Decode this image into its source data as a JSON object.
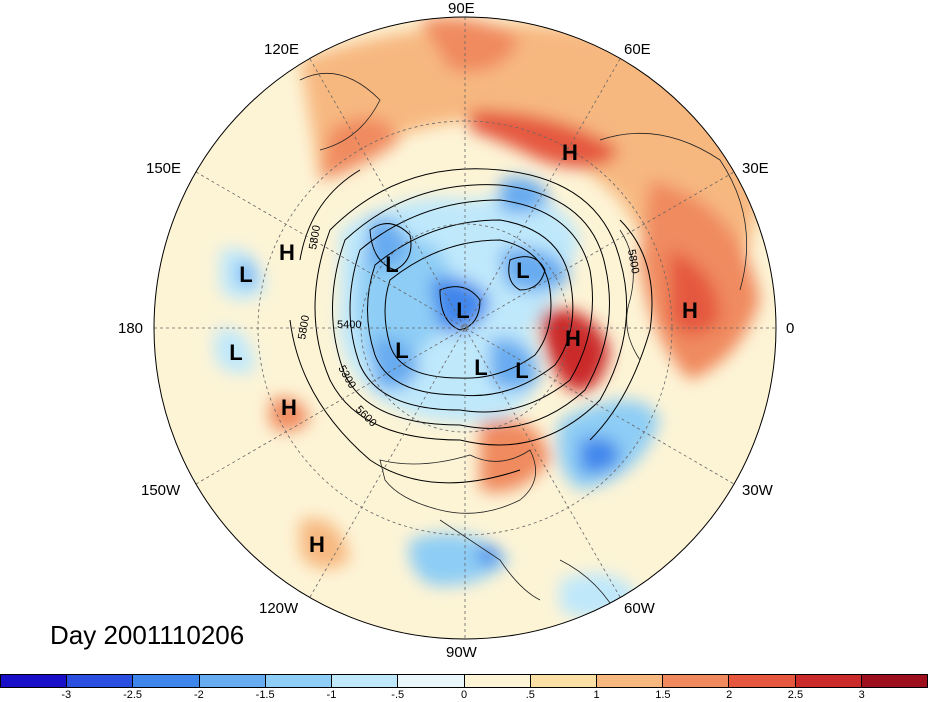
{
  "title": "Day 2001110206",
  "longitude_labels": {
    "n90e": "90E",
    "n120e": "120E",
    "n60e": "60E",
    "n150e": "150E",
    "n30e": "30E",
    "n180": "180",
    "n0": "0",
    "n150w": "150W",
    "n30w": "30W",
    "n120w": "120W",
    "n60w": "60W",
    "n90w": "90W"
  },
  "contour_labels": [
    "5800",
    "5800",
    "5800",
    "5400",
    "5300",
    "5600"
  ],
  "pressure_centers": [
    {
      "type": "H",
      "label": "H"
    },
    {
      "type": "H",
      "label": "H"
    },
    {
      "type": "H",
      "label": "H"
    },
    {
      "type": "H",
      "label": "H"
    },
    {
      "type": "H",
      "label": "H"
    },
    {
      "type": "H",
      "label": "H"
    },
    {
      "type": "L",
      "label": "L"
    },
    {
      "type": "L",
      "label": "L"
    },
    {
      "type": "L",
      "label": "L"
    },
    {
      "type": "L",
      "label": "L"
    },
    {
      "type": "L",
      "label": "L"
    },
    {
      "type": "L",
      "label": "L"
    },
    {
      "type": "L",
      "label": "L"
    },
    {
      "type": "L",
      "label": "L"
    }
  ],
  "colorbar": {
    "colors": [
      "#1a0fc8",
      "#2a4fe0",
      "#3f86ec",
      "#67abf0",
      "#8ecdf5",
      "#bfe8fb",
      "#e9f7fb",
      "#fdf4d6",
      "#fbe0a6",
      "#f7b880",
      "#f08a5e",
      "#e5583f",
      "#cb2a2a",
      "#9e0f1d"
    ],
    "ticks": [
      "-3",
      "-2.5",
      "-2",
      "-1.5",
      "-1",
      "-.5",
      "0",
      ".5",
      "1",
      "1.5",
      "2",
      "2.5",
      "3"
    ]
  }
}
